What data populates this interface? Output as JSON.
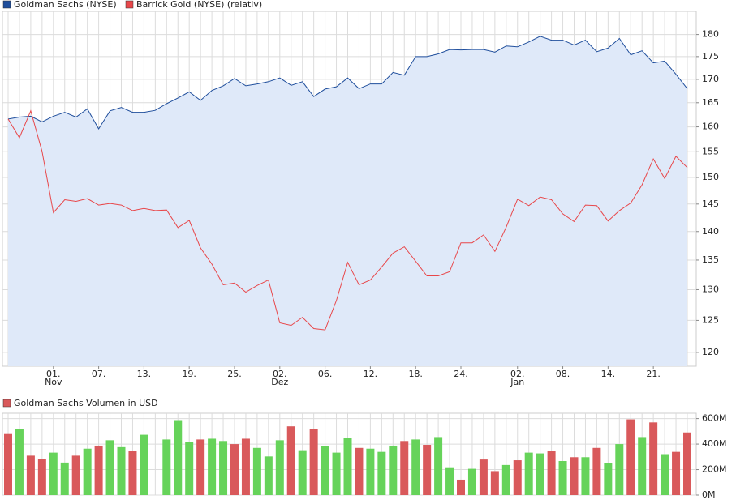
{
  "chart_data": [
    {
      "type": "line",
      "log_scale": true,
      "grid": true,
      "categories": [
        null,
        null,
        null,
        null,
        "01.",
        null,
        null,
        null,
        "07.",
        null,
        null,
        null,
        "13.",
        null,
        null,
        null,
        "19.",
        null,
        null,
        null,
        "25.",
        null,
        null,
        null,
        "02.",
        null,
        null,
        null,
        "06.",
        null,
        null,
        null,
        "12.",
        null,
        null,
        null,
        "18.",
        null,
        null,
        null,
        "24.",
        null,
        null,
        null,
        null,
        "02.",
        null,
        null,
        null,
        "08.",
        null,
        null,
        null,
        "14.",
        null,
        null,
        null,
        "21.",
        null,
        null,
        null
      ],
      "months": [
        null,
        null,
        null,
        null,
        "Nov",
        null,
        null,
        null,
        null,
        null,
        null,
        null,
        null,
        null,
        null,
        null,
        null,
        null,
        null,
        null,
        null,
        null,
        null,
        null,
        "Dez",
        null,
        null,
        null,
        null,
        null,
        null,
        null,
        null,
        null,
        null,
        null,
        null,
        null,
        null,
        null,
        null,
        null,
        null,
        null,
        null,
        "Jan",
        null,
        null,
        null,
        null,
        null,
        null,
        null,
        null,
        null,
        null,
        null,
        null,
        null,
        null,
        null
      ],
      "ylim": [
        117.9,
        185.4
      ],
      "yticks": [
        120,
        125,
        130,
        135,
        140,
        145,
        150,
        155,
        160,
        165,
        170,
        175,
        180
      ],
      "area_color": "#dfe9f9",
      "series": [
        {
          "name": "Goldman Sachs (NYSE)",
          "color": "#1f4e9c",
          "values": [
            161.6,
            162,
            162.2,
            161,
            162.2,
            163,
            162,
            163.7,
            159.6,
            163.3,
            164,
            163,
            163,
            163.4,
            164.8,
            166,
            167.3,
            165.5,
            167.6,
            168.6,
            170.2,
            168.6,
            169,
            169.5,
            170.3,
            168.7,
            169.5,
            166.3,
            167.9,
            168.4,
            170.3,
            168,
            169,
            169,
            171.5,
            170.9,
            175,
            175,
            175.6,
            176.6,
            176.5,
            176.6,
            176.6,
            176,
            177.4,
            177.2,
            178.3,
            179.6,
            178.7,
            178.7,
            177.6,
            178.7,
            176.1,
            176.9,
            179.1,
            175.4,
            176.3,
            173.6,
            174,
            171.1,
            168
          ]
        },
        {
          "name": "Barrick Gold (NYSE) (relativ)",
          "color": "#e8474a",
          "values": [
            161.6,
            157.8,
            163.3,
            155.1,
            143.4,
            145.8,
            145.5,
            146,
            144.8,
            145.1,
            144.8,
            143.8,
            144.2,
            143.8,
            143.9,
            140.7,
            142,
            137.1,
            134.3,
            130.8,
            131.1,
            129.6,
            130.7,
            131.6,
            124.6,
            124.2,
            125.5,
            123.7,
            123.5,
            128.2,
            134.6,
            130.8,
            131.6,
            133.8,
            136.2,
            137.3,
            134.8,
            132.3,
            132.3,
            133,
            138,
            138,
            139.4,
            136.5,
            140.8,
            145.9,
            144.7,
            146.3,
            145.8,
            143.2,
            141.8,
            144.8,
            144.7,
            141.9,
            143.8,
            145.2,
            148.6,
            153.6,
            149.8,
            154.1,
            151.9
          ]
        }
      ]
    },
    {
      "type": "bar",
      "grid": true,
      "title": "Goldman Sachs Volumen in USD",
      "title_color": "#d9595b",
      "ylim": [
        0,
        642
      ],
      "yticks": [
        {
          "value": 0,
          "label": "0M"
        },
        {
          "value": 200,
          "label": "200M"
        },
        {
          "value": 400,
          "label": "400M"
        },
        {
          "value": 600,
          "label": "600M"
        }
      ],
      "values": [
        485,
        515,
        309,
        285,
        333,
        255,
        309,
        364,
        388,
        430,
        376,
        345,
        473,
        null,
        436,
        588,
        418,
        436,
        442,
        424,
        400,
        442,
        370,
        303,
        430,
        539,
        352,
        515,
        382,
        333,
        448,
        370,
        364,
        339,
        388,
        424,
        436,
        394,
        455,
        218,
        121,
        206,
        279,
        188,
        236,
        273,
        333,
        327,
        345,
        267,
        297,
        297,
        370,
        248,
        400,
        594,
        455,
        570,
        321,
        339,
        491
      ],
      "colors": [
        "#d9595b",
        "#66d35a",
        "#d9595b",
        "#d9595b",
        "#66d35a",
        "#66d35a",
        "#d9595b",
        "#66d35a",
        "#d9595b",
        "#66d35a",
        "#66d35a",
        "#d9595b",
        "#66d35a",
        "#66d35a",
        "#66d35a",
        "#66d35a",
        "#66d35a",
        "#d9595b",
        "#66d35a",
        "#66d35a",
        "#d9595b",
        "#d9595b",
        "#66d35a",
        "#66d35a",
        "#66d35a",
        "#d9595b",
        "#66d35a",
        "#d9595b",
        "#66d35a",
        "#66d35a",
        "#66d35a",
        "#d9595b",
        "#66d35a",
        "#66d35a",
        "#66d35a",
        "#d9595b",
        "#66d35a",
        "#d9595b",
        "#66d35a",
        "#66d35a",
        "#d9595b",
        "#66d35a",
        "#d9595b",
        "#d9595b",
        "#66d35a",
        "#d9595b",
        "#66d35a",
        "#66d35a",
        "#d9595b",
        "#66d35a",
        "#d9595b",
        "#66d35a",
        "#d9595b",
        "#66d35a",
        "#66d35a",
        "#d9595b",
        "#66d35a",
        "#d9595b",
        "#66d35a",
        "#d9595b",
        "#d9595b"
      ]
    }
  ]
}
